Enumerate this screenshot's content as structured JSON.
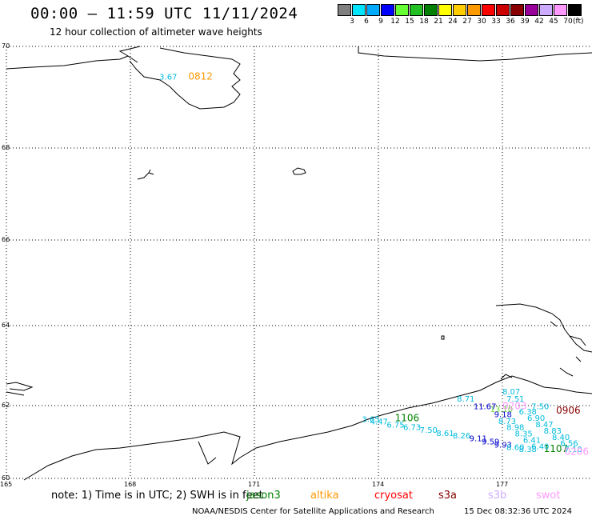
{
  "header": {
    "title": "00:00 – 11:59 UTC 11/11/2024",
    "subtitle": "12 hour collection of altimeter wave heights"
  },
  "legend": {
    "colors": [
      "#808080",
      "#00e5ff",
      "#00aaff",
      "#0000ff",
      "#66ff33",
      "#22c022",
      "#008000",
      "#ffff00",
      "#ffcc00",
      "#ff9900",
      "#ff0000",
      "#cc0000",
      "#880000",
      "#990099",
      "#ccaaff",
      "#ff99ff",
      "#000000"
    ],
    "labels": [
      "3",
      "6",
      "9",
      "12",
      "15",
      "18",
      "21",
      "24",
      "27",
      "30",
      "33",
      "36",
      "39",
      "42",
      "45",
      "70"
    ],
    "unit": "(ft)"
  },
  "axes": {
    "lat_labels": [
      "70",
      "68",
      "66",
      "64",
      "62",
      "60"
    ],
    "lon_labels": [
      "165",
      "168",
      "171",
      "174",
      "177"
    ]
  },
  "points": [
    {
      "text": "3.67",
      "lon": 168.7,
      "lat": 69.35,
      "color": "#00bbdd"
    },
    {
      "text": "0812",
      "lon": 169.4,
      "lat": 69.35,
      "color": "#ff9900"
    },
    {
      "text": "1106",
      "lon": 174.4,
      "lat": 61.57,
      "color": "#008000"
    },
    {
      "text": "3.65",
      "lon": 173.6,
      "lat": 61.55,
      "color": "#00bbdd"
    },
    {
      "text": "4.47",
      "lon": 173.8,
      "lat": 61.48,
      "color": "#00bbdd"
    },
    {
      "text": "6.75",
      "lon": 174.2,
      "lat": 61.4,
      "color": "#00bbdd"
    },
    {
      "text": "6.73",
      "lon": 174.6,
      "lat": 61.33,
      "color": "#00bbdd"
    },
    {
      "text": "7.50",
      "lon": 175.0,
      "lat": 61.25,
      "color": "#00bbdd"
    },
    {
      "text": "8.61",
      "lon": 175.4,
      "lat": 61.17,
      "color": "#00bbdd"
    },
    {
      "text": "8.26",
      "lon": 175.8,
      "lat": 61.1,
      "color": "#00bbdd"
    },
    {
      "text": "9.11",
      "lon": 176.2,
      "lat": 61.02,
      "color": "#0000cc"
    },
    {
      "text": "9.59",
      "lon": 176.5,
      "lat": 60.93,
      "color": "#0000cc"
    },
    {
      "text": "9.93",
      "lon": 176.8,
      "lat": 60.85,
      "color": "#0000cc"
    },
    {
      "text": "8.60",
      "lon": 177.1,
      "lat": 60.78,
      "color": "#00bbdd"
    },
    {
      "text": "8.38",
      "lon": 177.4,
      "lat": 60.72,
      "color": "#00bbdd"
    },
    {
      "text": "1107",
      "lon": 178.0,
      "lat": 60.72,
      "color": "#008000"
    },
    {
      "text": "8.71",
      "lon": 175.9,
      "lat": 62.1,
      "color": "#00bbdd"
    },
    {
      "text": "11.67",
      "lon": 176.3,
      "lat": 61.9,
      "color": "#0000cc"
    },
    {
      "text": "13.10",
      "lon": 176.7,
      "lat": 61.82,
      "color": "#66dd33"
    },
    {
      "text": "8.07",
      "lon": 177.0,
      "lat": 62.28,
      "color": "#00bbdd"
    },
    {
      "text": "7.51",
      "lon": 177.1,
      "lat": 62.1,
      "color": "#00bbdd"
    },
    {
      "text": "0203",
      "lon": 177.0,
      "lat": 61.9,
      "color": "#ff99ff"
    },
    {
      "text": "7.50",
      "lon": 177.7,
      "lat": 61.9,
      "color": "#00bbdd"
    },
    {
      "text": "9.18",
      "lon": 176.8,
      "lat": 61.68,
      "color": "#0000cc"
    },
    {
      "text": "6.38",
      "lon": 177.4,
      "lat": 61.76,
      "color": "#00bbdd"
    },
    {
      "text": "8.73",
      "lon": 176.9,
      "lat": 61.5,
      "color": "#00bbdd"
    },
    {
      "text": "6.90",
      "lon": 177.6,
      "lat": 61.58,
      "color": "#00bbdd"
    },
    {
      "text": "8.98",
      "lon": 177.1,
      "lat": 61.33,
      "color": "#00bbdd"
    },
    {
      "text": "8.47",
      "lon": 177.8,
      "lat": 61.41,
      "color": "#00bbdd"
    },
    {
      "text": "8.35",
      "lon": 177.3,
      "lat": 61.15,
      "color": "#00bbdd"
    },
    {
      "text": "8.83",
      "lon": 178.0,
      "lat": 61.23,
      "color": "#00bbdd"
    },
    {
      "text": "6.41",
      "lon": 177.5,
      "lat": 60.98,
      "color": "#00bbdd"
    },
    {
      "text": "8.40",
      "lon": 178.2,
      "lat": 61.06,
      "color": "#00bbdd"
    },
    {
      "text": "6.40",
      "lon": 177.7,
      "lat": 60.8,
      "color": "#00bbdd"
    },
    {
      "text": "6.56",
      "lon": 178.4,
      "lat": 60.89,
      "color": "#00bbdd"
    },
    {
      "text": "7.10",
      "lon": 178.5,
      "lat": 60.72,
      "color": "#00bbdd"
    },
    {
      "text": "0906",
      "lon": 178.3,
      "lat": 61.78,
      "color": "#880000"
    },
    {
      "text": "0206",
      "lon": 178.5,
      "lat": 60.65,
      "color": "#ff99ff"
    }
  ],
  "note": {
    "text": "note: 1) Time is in UTC; 2) SWH is in feet",
    "satellites": [
      {
        "name": "jason3",
        "color": "#008000"
      },
      {
        "name": "altika",
        "color": "#ff9900"
      },
      {
        "name": "cryosat",
        "color": "#ff0000"
      },
      {
        "name": "s3a",
        "color": "#880000"
      },
      {
        "name": "s3b",
        "color": "#ccaaff"
      },
      {
        "name": "swot",
        "color": "#ff99ff"
      }
    ]
  },
  "footer": {
    "credit": "NOAA/NESDIS Center for Satellite Applications and Research",
    "timestamp": "15 Dec 08:32:36 UTC 2024"
  }
}
